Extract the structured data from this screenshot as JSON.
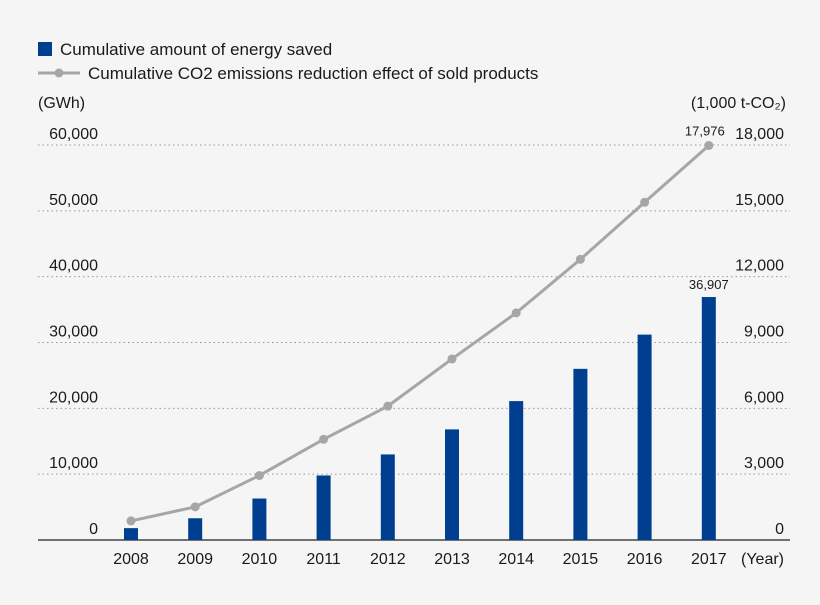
{
  "chart_data": {
    "type": "bar",
    "categories": [
      "2008",
      "2009",
      "2010",
      "2011",
      "2012",
      "2013",
      "2014",
      "2015",
      "2016",
      "2017"
    ],
    "series": [
      {
        "name": "Cumulative amount of energy saved",
        "type": "bar",
        "axis": "left",
        "values": [
          1800,
          3300,
          6300,
          9800,
          13000,
          16800,
          21100,
          26000,
          31200,
          36907
        ],
        "color": "#003f8f"
      },
      {
        "name": "Cumulative CO2 emissions reduction effect of sold products",
        "type": "line",
        "axis": "right",
        "values": [
          870,
          1510,
          2940,
          4590,
          6100,
          8250,
          10350,
          12790,
          15390,
          17976
        ],
        "color": "#a6a6a6"
      }
    ],
    "data_labels": {
      "bar_last": "36,907",
      "line_last": "17,976"
    },
    "y_left": {
      "label": "(GWh)",
      "ylim": [
        0,
        60000
      ],
      "ticks": [
        "0",
        "10,000",
        "20,000",
        "30,000",
        "40,000",
        "50,000",
        "60,000"
      ]
    },
    "y_right": {
      "label": "(1,000 t-CO₂)",
      "ylim": [
        0,
        18000
      ],
      "ticks": [
        "0",
        "3,000",
        "6,000",
        "9,000",
        "12,000",
        "15,000",
        "18,000"
      ]
    },
    "xlabel": "(Year)",
    "grid": true,
    "legend_position": "top-left"
  }
}
